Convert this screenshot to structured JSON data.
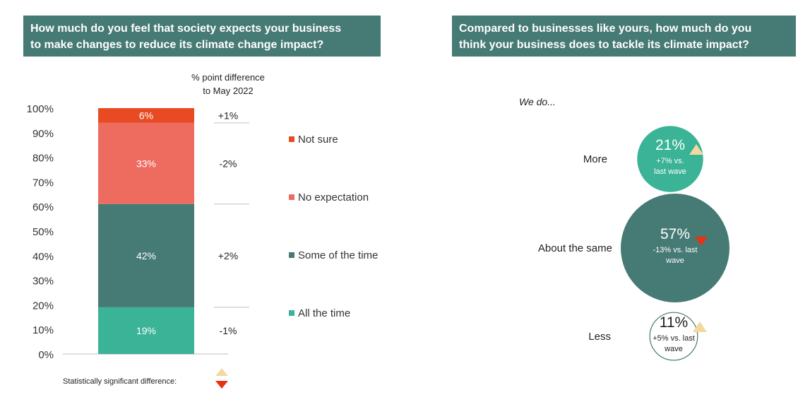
{
  "left_panel": {
    "header": {
      "line1": "How much do you feel that society expects your business",
      "line2": "to make changes to reduce its climate change impact?"
    },
    "diff_header": {
      "line1": "% point difference",
      "line2": "to May 2022"
    },
    "significance_note": "Statistically significant difference:"
  },
  "right_panel": {
    "header": {
      "line1": "Compared to businesses like yours, how much do you",
      "line2": "think your business does to tackle its climate impact?"
    },
    "prefix": "We do...",
    "bubbles": [
      {
        "label": "More",
        "value": 21,
        "value_label": "21%",
        "change_line1": "+7% vs.",
        "change_line2": "last wave",
        "significance": "up",
        "fill": "#3bb396",
        "text_color": "#ffffff",
        "stroke": "none"
      },
      {
        "label": "About the same",
        "value": 57,
        "value_label": "57%",
        "change_line1": "-13% vs. last",
        "change_line2": "wave",
        "significance": "down",
        "fill": "#467a74",
        "text_color": "#ffffff",
        "stroke": "none"
      },
      {
        "label": "Less",
        "value": 11,
        "value_label": "11%",
        "change_line1": "+5% vs. last",
        "change_line2": "wave",
        "significance": "up",
        "fill": "#ffffff",
        "text_color": "#222222",
        "stroke": "#467a74"
      }
    ]
  },
  "colors": {
    "header_bg": "#467a74",
    "sig_up": "#f2d9a0",
    "sig_down": "#e63312"
  },
  "chart_data": {
    "type": "bar",
    "stacked": true,
    "categories": [
      ""
    ],
    "series": [
      {
        "name": "All the time",
        "values": [
          19
        ],
        "label": "19%",
        "diff": "-1%",
        "color": "#3bb396"
      },
      {
        "name": "Some of the time",
        "values": [
          42
        ],
        "label": "42%",
        "diff": "+2%",
        "color": "#467a74"
      },
      {
        "name": "No expectation",
        "values": [
          33
        ],
        "label": "33%",
        "diff": "-2%",
        "color": "#ee6b60"
      },
      {
        "name": "Not sure",
        "values": [
          6
        ],
        "label": "6%",
        "diff": "+1%",
        "color": "#e84a24"
      }
    ],
    "ylim": [
      0,
      100
    ],
    "yticks": [
      "0%",
      "10%",
      "20%",
      "30%",
      "40%",
      "50%",
      "60%",
      "70%",
      "80%",
      "90%",
      "100%"
    ],
    "legend_order": [
      "Not sure",
      "No expectation",
      "Some of the time",
      "All the time"
    ],
    "legend_position": "right",
    "grid": false
  }
}
